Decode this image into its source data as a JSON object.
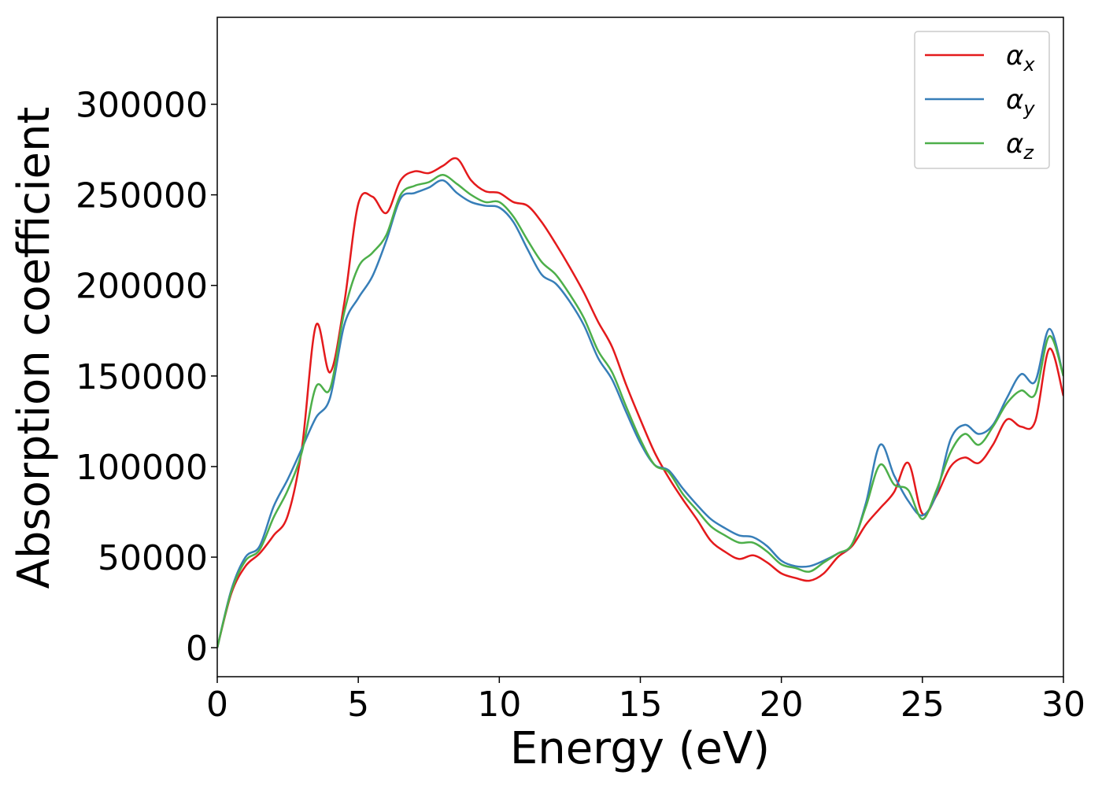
{
  "chart_data": {
    "type": "line",
    "xlabel": "Energy (eV)",
    "ylabel": "Absorption coefficient",
    "x": [
      0,
      0.5,
      1,
      1.5,
      2,
      2.5,
      3,
      3.5,
      4,
      4.5,
      5,
      5.5,
      6,
      6.5,
      7,
      7.5,
      8,
      8.5,
      9,
      9.5,
      10,
      10.5,
      11,
      11.5,
      12,
      12.5,
      13,
      13.5,
      14,
      14.5,
      15,
      15.5,
      16,
      16.5,
      17,
      17.5,
      18,
      18.5,
      19,
      19.5,
      20,
      20.5,
      21,
      21.5,
      22,
      22.5,
      23,
      23.5,
      24,
      24.5,
      25,
      25.5,
      26,
      26.5,
      27,
      27.5,
      28,
      28.5,
      29,
      29.5,
      30
    ],
    "series": [
      {
        "name": "αx",
        "color": "#e41a1c",
        "values": [
          0,
          30000,
          45000,
          52000,
          62000,
          73000,
          110000,
          178000,
          152000,
          190000,
          245000,
          249000,
          240000,
          258000,
          263000,
          262000,
          266000,
          270000,
          258000,
          252000,
          251000,
          246000,
          244000,
          235000,
          223000,
          210000,
          196000,
          180000,
          166000,
          145000,
          126000,
          108000,
          94000,
          82000,
          71000,
          59000,
          53000,
          49000,
          51000,
          47000,
          41000,
          38500,
          37000,
          41000,
          50000,
          56000,
          68000,
          77000,
          86000,
          102000,
          74000,
          84000,
          100000,
          105000,
          102000,
          112000,
          126000,
          122000,
          125000,
          165000,
          139000
        ]
      },
      {
        "name": "αy",
        "color": "#377eb8",
        "values": [
          0,
          32000,
          50000,
          56000,
          78000,
          93000,
          110000,
          127000,
          138000,
          178000,
          193000,
          205000,
          225000,
          248000,
          251000,
          254000,
          258000,
          251000,
          246000,
          244000,
          243000,
          235000,
          220000,
          206000,
          201000,
          191000,
          178000,
          160000,
          148000,
          130000,
          113000,
          101000,
          98000,
          88000,
          79000,
          71000,
          66000,
          62000,
          61000,
          56000,
          48000,
          45000,
          45000,
          48000,
          52000,
          57000,
          80000,
          112000,
          95000,
          81000,
          73000,
          85000,
          115000,
          123000,
          118000,
          123000,
          138000,
          151000,
          147000,
          176000,
          150000
        ]
      },
      {
        "name": "αz",
        "color": "#4daf4a",
        "values": [
          0,
          31000,
          48000,
          54000,
          72000,
          87000,
          108000,
          144000,
          143000,
          185000,
          210000,
          218000,
          228000,
          250000,
          255000,
          257000,
          261000,
          256000,
          250000,
          246000,
          246000,
          238000,
          225000,
          213000,
          206000,
          195000,
          182000,
          164000,
          152000,
          133000,
          115000,
          101000,
          97000,
          85000,
          76000,
          67000,
          62000,
          58000,
          58000,
          53000,
          46000,
          44000,
          42000,
          47000,
          52000,
          57000,
          78000,
          101000,
          90000,
          87000,
          71000,
          87000,
          108000,
          118000,
          112000,
          122000,
          135000,
          142000,
          140000,
          172000,
          150000
        ]
      }
    ],
    "xlim": [
      0,
      30
    ],
    "xticks": [
      0,
      5,
      10,
      15,
      20,
      25,
      30
    ],
    "ylim": [
      -16000,
      348000
    ],
    "yticks": [
      0,
      50000,
      100000,
      150000,
      200000,
      250000,
      300000
    ],
    "legend": "upper right"
  }
}
